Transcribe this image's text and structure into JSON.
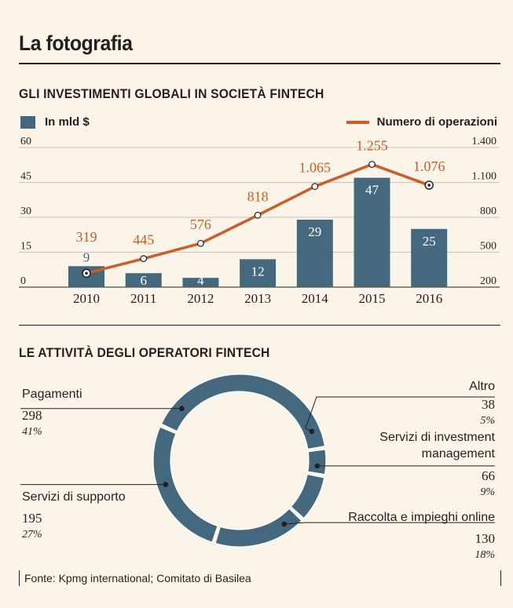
{
  "header": {
    "title": "La fotografia"
  },
  "colors": {
    "bar": "#44697f",
    "line": "#cf5b25",
    "background": "#fbf5e9",
    "donut": "#44697f"
  },
  "investments": {
    "section_title": "GLI INVESTIMENTI GLOBALI IN SOCIETÀ FINTECH",
    "legend_bars": "In mld $",
    "legend_line": "Numero di operazioni"
  },
  "activities": {
    "section_title": "LE ATTIVITÀ DEGLI OPERATORI FINTECH"
  },
  "source": "Fonte: Kpmg international; Comitato di Basilea",
  "chart_data": [
    {
      "type": "bar",
      "title": "GLI INVESTIMENTI GLOBALI IN SOCIETÀ FINTECH",
      "categories": [
        "2010",
        "2011",
        "2012",
        "2013",
        "2014",
        "2015",
        "2016"
      ],
      "series": [
        {
          "name": "In mld $",
          "type": "bar",
          "axis": "left",
          "values": [
            9,
            6,
            4,
            12,
            29,
            47,
            25
          ],
          "labels": [
            "9",
            "6",
            "4",
            "12",
            "29",
            "47",
            "25"
          ]
        },
        {
          "name": "Numero di operazioni",
          "type": "line",
          "axis": "right",
          "values": [
            319,
            445,
            576,
            818,
            1065,
            1255,
            1076
          ],
          "labels": [
            "319",
            "445",
            "576",
            "818",
            "1.065",
            "1.255",
            "1.076"
          ]
        }
      ],
      "ylim_left": [
        0,
        60
      ],
      "yticks_left": [
        0,
        15,
        30,
        45,
        60
      ],
      "ytick_labels_left": [
        "0",
        "15",
        "30",
        "45",
        "60"
      ],
      "ylim_right": [
        200,
        1400
      ],
      "yticks_right": [
        200,
        500,
        800,
        1100,
        1400
      ],
      "ytick_labels_right": [
        "200",
        "500",
        "800",
        "1.100",
        "1.400"
      ],
      "grid": true
    },
    {
      "type": "pie",
      "variant": "donut",
      "title": "LE ATTIVITÀ DEGLI OPERATORI FINTECH",
      "segments": [
        {
          "name": "Pagamenti",
          "value": 298,
          "count_label": "298",
          "pct_label": "41%"
        },
        {
          "name": "Altro",
          "value": 38,
          "count_label": "38",
          "pct_label": "5%"
        },
        {
          "name": "Servizi di investment management",
          "name_lines": [
            "Servizi di investment",
            "management"
          ],
          "value": 66,
          "count_label": "66",
          "pct_label": "9%"
        },
        {
          "name": "Raccolta e impieghi online",
          "value": 130,
          "count_label": "130",
          "pct_label": "18%"
        },
        {
          "name": "Servizi di supporto",
          "value": 195,
          "count_label": "195",
          "pct_label": "27%"
        }
      ]
    }
  ]
}
